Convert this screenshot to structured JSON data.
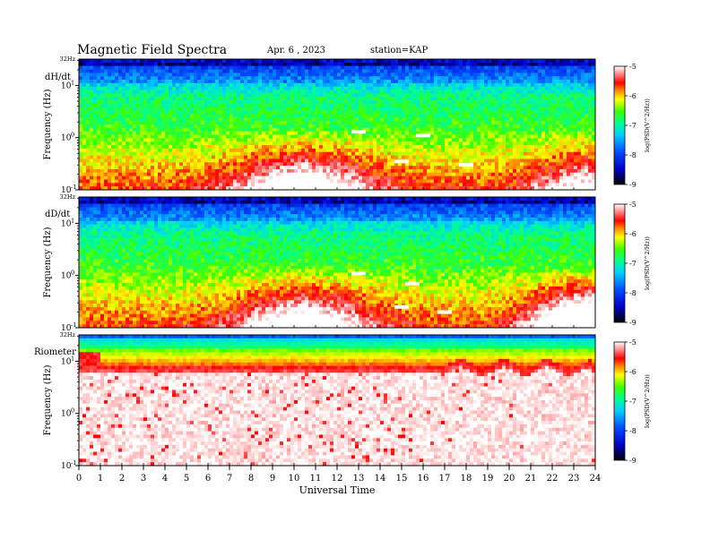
{
  "header": {
    "title": "Magnetic  Field  Spectra",
    "date": "Apr. 6  , 2023",
    "station": "station=KAP"
  },
  "chart_data": [
    {
      "type": "heatmap",
      "label": "dH/dt",
      "ylabel": "Frequency  (Hz)",
      "ylim": [
        0.1,
        32
      ],
      "yscale": "log",
      "ytick_top": "32Hz",
      "yticks": [
        {
          "value": 10,
          "exp": "1"
        },
        {
          "value": 1,
          "exp": "0"
        },
        {
          "value": 0.1,
          "exp": "-1"
        }
      ],
      "xlim": [
        0,
        24
      ],
      "colorbar": {
        "label": "log(PSD(V^2/Hz))",
        "ticks": [
          "-5",
          "-6",
          "-7",
          "-8",
          "-9"
        ],
        "range": [
          -9,
          -5
        ]
      },
      "morning_lf_strength": 0.55,
      "evening_lf_strength": 0.45,
      "white_streaks": [
        [
          13.0,
          1.3
        ],
        [
          16.0,
          1.1
        ],
        [
          15.0,
          0.35
        ],
        [
          18.0,
          0.3
        ]
      ]
    },
    {
      "type": "heatmap",
      "label": "dD/dt",
      "ylabel": "Frequency  (Hz)",
      "ylim": [
        0.1,
        32
      ],
      "yscale": "log",
      "ytick_top": "32Hz",
      "yticks": [
        {
          "value": 10,
          "exp": "1"
        },
        {
          "value": 1,
          "exp": "0"
        },
        {
          "value": 0.1,
          "exp": "-1"
        }
      ],
      "xlim": [
        0,
        24
      ],
      "colorbar": {
        "label": "log(PSD(V^2/Hz))",
        "ticks": [
          "-5",
          "-6",
          "-7",
          "-8",
          "-9"
        ],
        "range": [
          -9,
          -5
        ]
      },
      "morning_lf_strength": 0.55,
      "evening_lf_strength": 0.9,
      "white_streaks": [
        [
          13.0,
          1.1
        ],
        [
          15.5,
          0.7
        ],
        [
          15.0,
          0.25
        ],
        [
          17.0,
          0.2
        ]
      ]
    },
    {
      "type": "heatmap",
      "label": "Riometer",
      "ylabel": "Frequency  (Hz)",
      "ylim": [
        0.1,
        32
      ],
      "yscale": "log",
      "ytick_top": "32Hz",
      "yticks": [
        {
          "value": 10,
          "exp": "1"
        },
        {
          "value": 1,
          "exp": "0"
        },
        {
          "value": 0.1,
          "exp": "-1"
        }
      ],
      "xlim": [
        0,
        24
      ],
      "colorbar": {
        "label": "log(PSD(V^2/Hz))",
        "ticks": [
          "-5",
          "-6",
          "-7",
          "-8",
          "-9"
        ],
        "range": [
          -9,
          -5
        ]
      },
      "white_streaks": []
    }
  ],
  "xaxis": {
    "label": "Universal Time",
    "ticks": [
      "0",
      "1",
      "2",
      "3",
      "4",
      "5",
      "6",
      "7",
      "8",
      "9",
      "10",
      "11",
      "12",
      "13",
      "14",
      "15",
      "16",
      "17",
      "18",
      "19",
      "20",
      "21",
      "22",
      "23",
      "24"
    ]
  },
  "colors": {
    "scale": [
      "#000000",
      "#1010ff",
      "#00c8ff",
      "#00ff80",
      "#ffff00",
      "#ff0000",
      "#ffffff"
    ]
  }
}
